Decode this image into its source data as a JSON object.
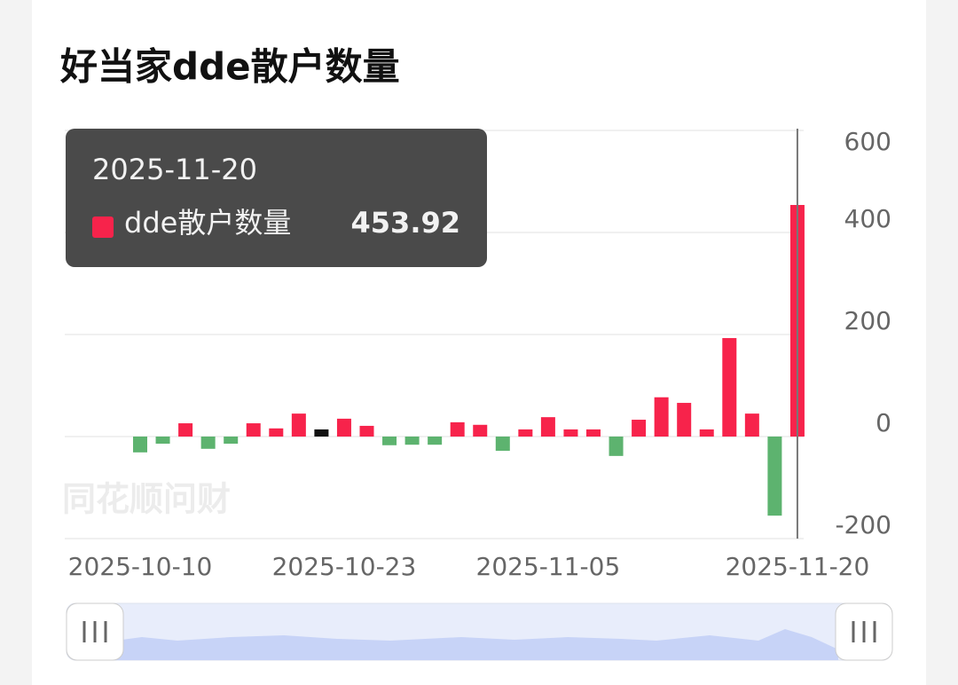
{
  "chart_data": {
    "type": "bar",
    "title": "好当家dde散户数量",
    "watermark": "同花顺问财",
    "categories": [
      "2025-10-10",
      null,
      null,
      null,
      null,
      null,
      null,
      null,
      null,
      "2025-10-23",
      null,
      null,
      null,
      null,
      null,
      null,
      null,
      null,
      "2025-11-05",
      null,
      null,
      null,
      null,
      null,
      null,
      null,
      null,
      null,
      null,
      "2025-11-20"
    ],
    "tooltip_date": "2025-11-20",
    "series": [
      {
        "name": "dde散户数量",
        "values": [
          -31,
          -14,
          26,
          -24,
          -14,
          26,
          16,
          45,
          14,
          35,
          21,
          -17,
          -16,
          -16,
          28,
          23,
          -28,
          14,
          38,
          14,
          14,
          -38,
          33,
          77,
          66,
          14,
          193,
          45,
          -155,
          453.92
        ],
        "colors": [
          "#5db36f",
          "#5db36f",
          "#f7234b",
          "#5db36f",
          "#5db36f",
          "#f7234b",
          "#f7234b",
          "#f7234b",
          "#111111",
          "#f7234b",
          "#f7234b",
          "#5db36f",
          "#5db36f",
          "#5db36f",
          "#f7234b",
          "#f7234b",
          "#5db36f",
          "#f7234b",
          "#f7234b",
          "#f7234b",
          "#f7234b",
          "#5db36f",
          "#f7234b",
          "#f7234b",
          "#f7234b",
          "#f7234b",
          "#f7234b",
          "#f7234b",
          "#5db36f",
          "#f7234b"
        ]
      }
    ],
    "ylim": [
      -200,
      600
    ],
    "yticks": [
      -200,
      0,
      200,
      400,
      600
    ],
    "grid": true
  }
}
